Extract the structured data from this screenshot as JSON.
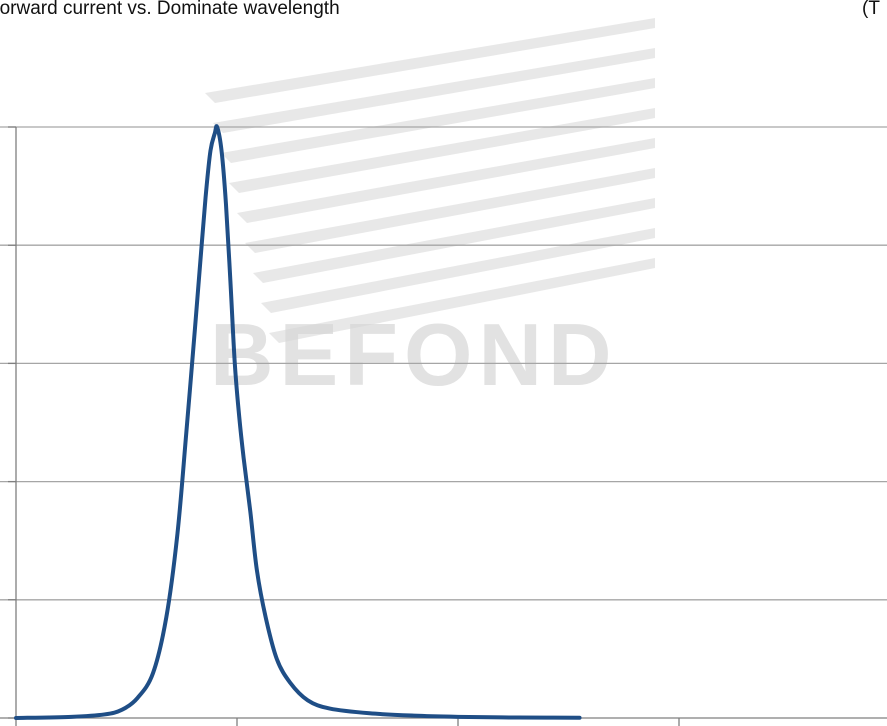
{
  "header": {
    "title": "Forward current vs. Dominate wavelength",
    "right_text": "(T"
  },
  "watermark": {
    "text": "BEFOND"
  },
  "colors": {
    "series": "#1F4E86",
    "grid": "#a6a6a6",
    "axis": "#7f7f7f",
    "watermark": "#d6d6d6"
  },
  "chart_data": {
    "type": "line",
    "title": "Forward current vs. Dominate wavelength",
    "xlabel": "",
    "ylabel": "",
    "xlim": [
      0,
      4
    ],
    "ylim": [
      0,
      5
    ],
    "grid": true,
    "legend": "none",
    "series": [
      {
        "x": [
          0,
          0.25,
          0.4,
          0.48,
          0.55,
          0.62,
          0.68,
          0.73,
          0.77,
          0.81,
          0.84,
          0.86,
          0.88,
          0.9,
          0.91,
          0.93,
          0.95,
          0.97,
          0.99,
          1.01,
          1.03,
          1.06,
          1.09,
          1.13,
          1.18,
          1.24,
          1.32,
          1.42,
          1.6,
          1.8,
          2.0,
          2.2,
          2.4,
          2.55
        ],
        "y": [
          0,
          0.01,
          0.03,
          0.07,
          0.17,
          0.38,
          0.85,
          1.55,
          2.4,
          3.3,
          4.0,
          4.45,
          4.8,
          4.95,
          5.0,
          4.8,
          4.35,
          3.7,
          3.0,
          2.55,
          2.2,
          1.75,
          1.25,
          0.85,
          0.5,
          0.3,
          0.15,
          0.08,
          0.04,
          0.02,
          0.01,
          0.005,
          0.003,
          0.002
        ]
      }
    ]
  }
}
